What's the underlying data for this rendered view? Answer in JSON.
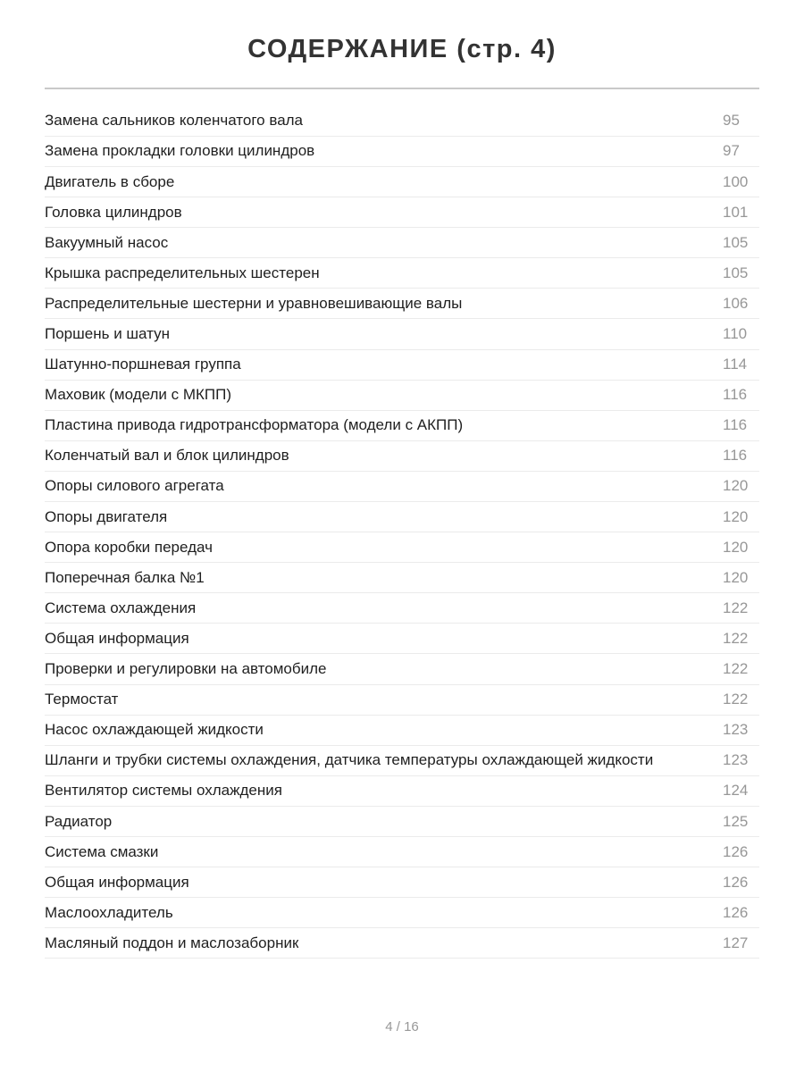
{
  "page": {
    "title": "СОДЕРЖАНИЕ (стр. 4)",
    "footer": "4 / 16"
  },
  "colors": {
    "title": "#333333",
    "text": "#1f1f1f",
    "muted": "#979797",
    "divider": "#ebebeb",
    "rule": "#c9c9c9",
    "bg": "#ffffff"
  },
  "toc": {
    "entries": [
      {
        "label": "Замена сальников коленчатого вала",
        "page": "95"
      },
      {
        "label": "Замена прокладки головки цилиндров",
        "page": "97"
      },
      {
        "label": "Двигатель в сборе",
        "page": "100"
      },
      {
        "label": "Головка цилиндров",
        "page": "101"
      },
      {
        "label": "Вакуумный насос",
        "page": "105"
      },
      {
        "label": "Крышка распределительных шестерен",
        "page": "105"
      },
      {
        "label": "Распределительные шестерни и уравновешивающие валы",
        "page": "106"
      },
      {
        "label": "Поршень и шатун",
        "page": "110"
      },
      {
        "label": "Шатунно-поршневая группа",
        "page": "114"
      },
      {
        "label": "Маховик (модели с МКПП)",
        "page": "116"
      },
      {
        "label": "Пластина привода гидротрансформатора (модели с АКПП)",
        "page": "116"
      },
      {
        "label": "Коленчатый вал и блок цилиндров",
        "page": "116"
      },
      {
        "label": "Опоры силового агрегата",
        "page": "120"
      },
      {
        "label": "Опоры двигателя",
        "page": "120"
      },
      {
        "label": "Опора коробки передач",
        "page": "120"
      },
      {
        "label": "Поперечная балка №1",
        "page": "120"
      },
      {
        "label": "Система охлаждения",
        "page": "122"
      },
      {
        "label": "Общая информация",
        "page": "122"
      },
      {
        "label": "Проверки и регулировки на автомобиле",
        "page": "122"
      },
      {
        "label": "Термостат",
        "page": "122"
      },
      {
        "label": "Насос охлаждающей жидкости",
        "page": "123"
      },
      {
        "label": "Шланги и трубки системы охлаждения, датчика температуры охлаждающей жидкости",
        "page": "123"
      },
      {
        "label": "Вентилятор системы охлаждения",
        "page": "124"
      },
      {
        "label": "Радиатор",
        "page": "125"
      },
      {
        "label": "Система смазки",
        "page": "126"
      },
      {
        "label": "Общая информация",
        "page": "126"
      },
      {
        "label": "Маслоохладитель",
        "page": "126"
      },
      {
        "label": "Масляный поддон и маслозаборник",
        "page": "127"
      }
    ]
  }
}
